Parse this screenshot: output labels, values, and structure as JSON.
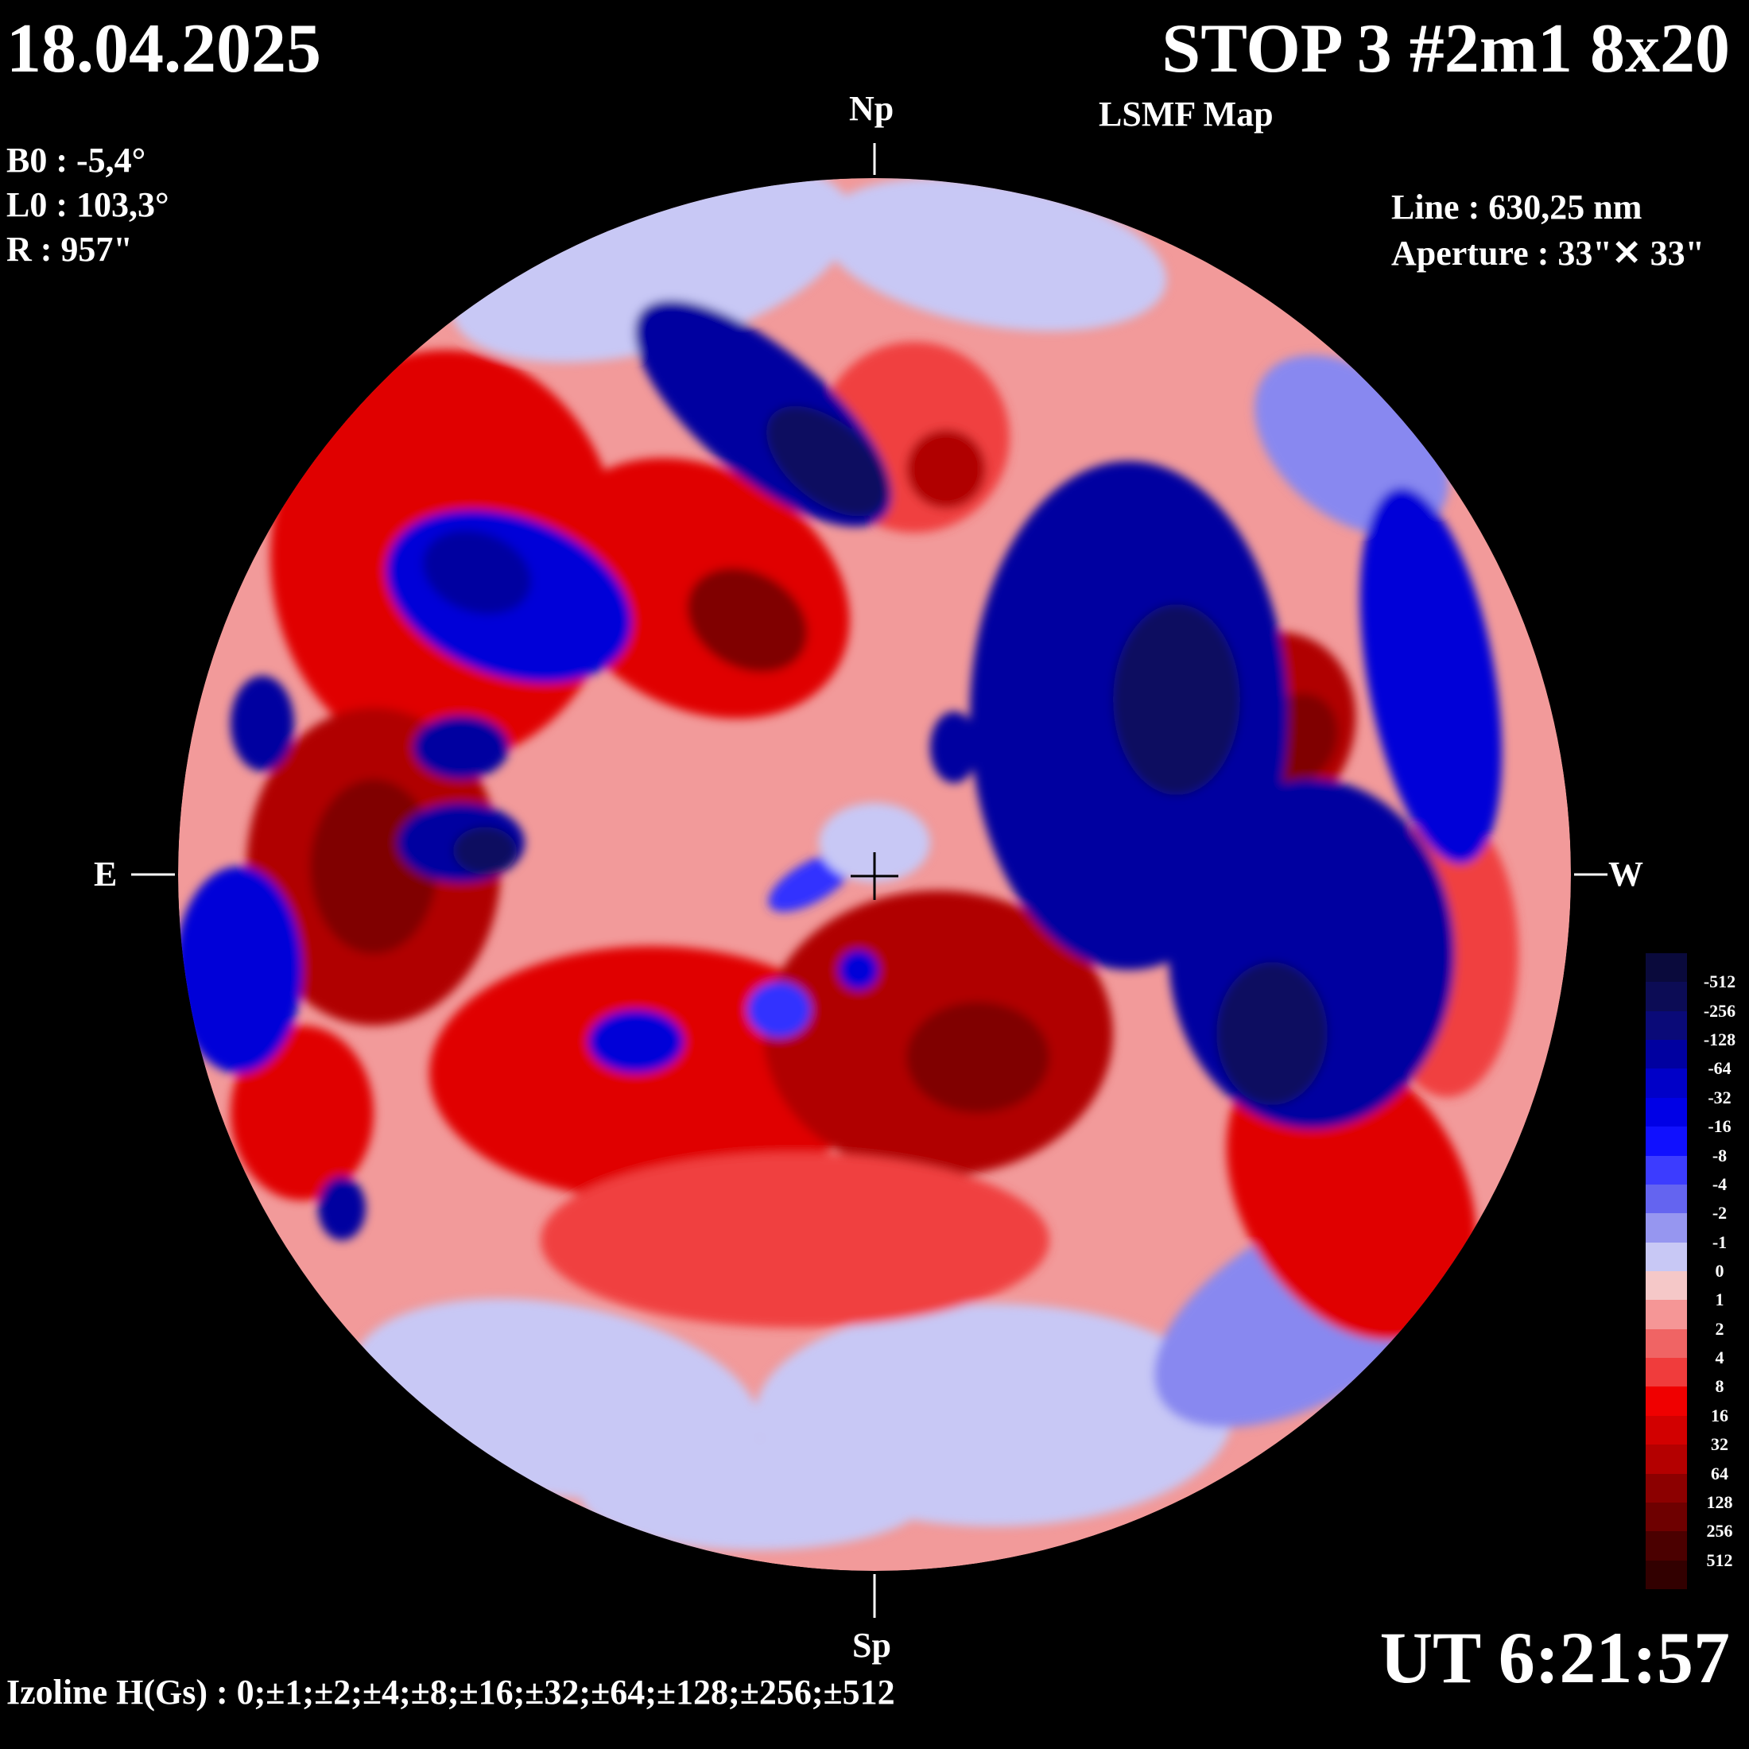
{
  "header": {
    "date": "18.04.2025",
    "title": "STOP 3 #2m1 8x20",
    "subtitle": "LSMF  Map"
  },
  "params": {
    "b0": "B0 : -5,4°",
    "l0": "L0 : 103,3°",
    "r": "R  : 957\""
  },
  "instrument": {
    "line": "Line :  630,25 nm",
    "aperture": "Aperture : 33\"✕ 33\""
  },
  "axes": {
    "north": "Np",
    "south": "Sp",
    "east": "E",
    "west": "W"
  },
  "time": "UT 6:21:57",
  "izoline": "Izoline H(Gs) : 0;±1;±2;±4;±8;±16;±32;±64;±128;±256;±512",
  "colorbar": {
    "labels": [
      "-512",
      "-256",
      "-128",
      "-64",
      "-32",
      "-16",
      "-8",
      "-4",
      "-2",
      "-1",
      "0",
      "1",
      "2",
      "4",
      "8",
      "16",
      "32",
      "64",
      "128",
      "256",
      "512"
    ],
    "colors": [
      "#0a0a3c",
      "#0c0c55",
      "#0a0a78",
      "#0000a0",
      "#0000c8",
      "#0000e6",
      "#1010ff",
      "#3c3cff",
      "#6464f0",
      "#9696f0",
      "#c8c8f5",
      "#f5c8c8",
      "#f59696",
      "#f06464",
      "#f03c3c",
      "#f00000",
      "#d20000",
      "#b40000",
      "#8c0000",
      "#6e0000",
      "#4b0000",
      "#320000"
    ]
  },
  "map": {
    "background": "#f0a0a0",
    "positive_colors": [
      "#f5c0c0",
      "#f08080",
      "#f04040",
      "#e00000",
      "#b00000",
      "#800000"
    ],
    "negative_colors": [
      "#c8c8f5",
      "#8888f0",
      "#3030ff",
      "#0000d8",
      "#0000a0",
      "#0a0a60"
    ]
  }
}
